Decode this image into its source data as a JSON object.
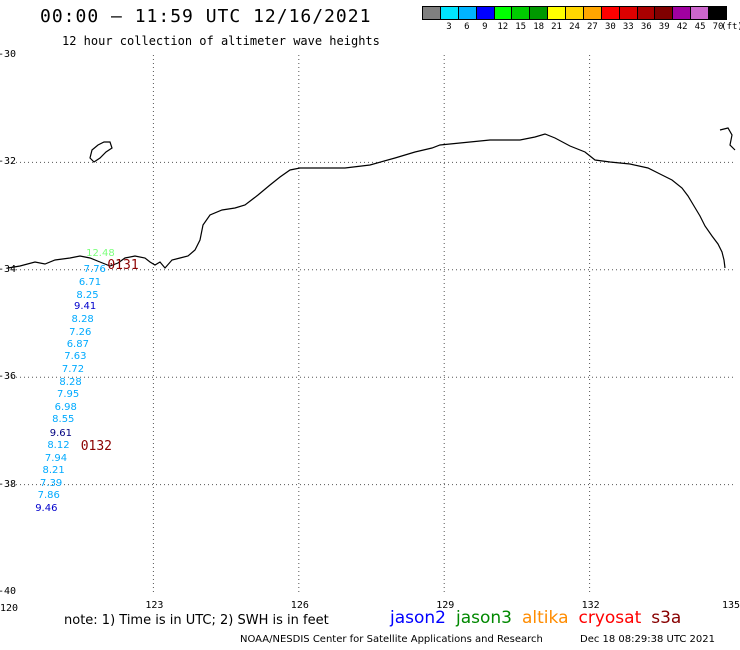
{
  "title": "00:00 – 11:59 UTC 12/16/2021",
  "subtitle": "12 hour collection of altimeter wave heights",
  "legend": {
    "unit": "(ft)",
    "bins": [
      {
        "label": "",
        "color": "#808080"
      },
      {
        "label": "3",
        "color": "#00e5ff"
      },
      {
        "label": "6",
        "color": "#00b4ff"
      },
      {
        "label": "9",
        "color": "#0000ff"
      },
      {
        "label": "12",
        "color": "#00ff00"
      },
      {
        "label": "15",
        "color": "#00cc00"
      },
      {
        "label": "18",
        "color": "#009900"
      },
      {
        "label": "21",
        "color": "#ffff00"
      },
      {
        "label": "24",
        "color": "#ffd700"
      },
      {
        "label": "27",
        "color": "#ffa500"
      },
      {
        "label": "30",
        "color": "#ff0000"
      },
      {
        "label": "33",
        "color": "#dd0000"
      },
      {
        "label": "36",
        "color": "#aa0000"
      },
      {
        "label": "39",
        "color": "#800000"
      },
      {
        "label": "42",
        "color": "#a000a0"
      },
      {
        "label": "45",
        "color": "#cc66cc"
      },
      {
        "label": "70",
        "color": "#000000"
      }
    ]
  },
  "axes": {
    "lon_range": [
      120,
      135
    ],
    "lat_range": [
      -40,
      -30
    ],
    "x_ticks": [
      "120",
      "123",
      "126",
      "129",
      "132",
      "135"
    ],
    "y_ticks": [
      "-30",
      "-32",
      "-34",
      "-36",
      "-38",
      "-40"
    ]
  },
  "passes": [
    {
      "id": "0131",
      "lon": 122.05,
      "lat": -33.92
    },
    {
      "id": "0132",
      "lon": 121.5,
      "lat": -37.3
    }
  ],
  "observations": [
    {
      "value": "12.48",
      "lon": 121.9,
      "lat": -33.7,
      "color": "#7cff7c"
    },
    {
      "value": "7.76",
      "lon": 121.85,
      "lat": -34.0,
      "color": "#00aaff"
    },
    {
      "value": "6.71",
      "lon": 121.75,
      "lat": -34.25,
      "color": "#00aaff"
    },
    {
      "value": "8.25",
      "lon": 121.7,
      "lat": -34.48,
      "color": "#00aaff"
    },
    {
      "value": "9.41",
      "lon": 121.65,
      "lat": -34.7,
      "color": "#0000cc"
    },
    {
      "value": "8.28",
      "lon": 121.6,
      "lat": -34.93,
      "color": "#00aaff"
    },
    {
      "value": "7.26",
      "lon": 121.55,
      "lat": -35.17,
      "color": "#00aaff"
    },
    {
      "value": "6.87",
      "lon": 121.5,
      "lat": -35.4,
      "color": "#00aaff"
    },
    {
      "value": "7.63",
      "lon": 121.45,
      "lat": -35.63,
      "color": "#00aaff"
    },
    {
      "value": "7.72",
      "lon": 121.4,
      "lat": -35.87,
      "color": "#00aaff"
    },
    {
      "value": "8.28",
      "lon": 121.35,
      "lat": -36.1,
      "color": "#00aaff"
    },
    {
      "value": "7.95",
      "lon": 121.3,
      "lat": -36.33,
      "color": "#00aaff"
    },
    {
      "value": "6.98",
      "lon": 121.25,
      "lat": -36.57,
      "color": "#00aaff"
    },
    {
      "value": "8.55",
      "lon": 121.2,
      "lat": -36.8,
      "color": "#00aaff"
    },
    {
      "value": "9.61",
      "lon": 121.15,
      "lat": -37.05,
      "color": "#000080"
    },
    {
      "value": "8.12",
      "lon": 121.1,
      "lat": -37.28,
      "color": "#00aaff"
    },
    {
      "value": "7.94",
      "lon": 121.05,
      "lat": -37.52,
      "color": "#00aaff"
    },
    {
      "value": "8.21",
      "lon": 121.0,
      "lat": -37.75,
      "color": "#00aaff"
    },
    {
      "value": "7.39",
      "lon": 120.95,
      "lat": -37.98,
      "color": "#00aaff"
    },
    {
      "value": "7.86",
      "lon": 120.9,
      "lat": -38.22,
      "color": "#00aaff"
    },
    {
      "value": "9.46",
      "lon": 120.85,
      "lat": -38.45,
      "color": "#0000cc"
    }
  ],
  "footer": {
    "note": "note:  1) Time is in UTC;  2) SWH is in feet",
    "satellites": [
      {
        "name": "jason2",
        "color": "#0000ff"
      },
      {
        "name": "jason3",
        "color": "#008800"
      },
      {
        "name": "altika",
        "color": "#ff8c00"
      },
      {
        "name": "cryosat",
        "color": "#ff0000"
      },
      {
        "name": "s3a",
        "color": "#880000"
      }
    ],
    "credit": "NOAA/NESDIS Center for Satellite Applications and Research",
    "timestamp": "Dec 18 08:29:38 UTC 2021"
  }
}
